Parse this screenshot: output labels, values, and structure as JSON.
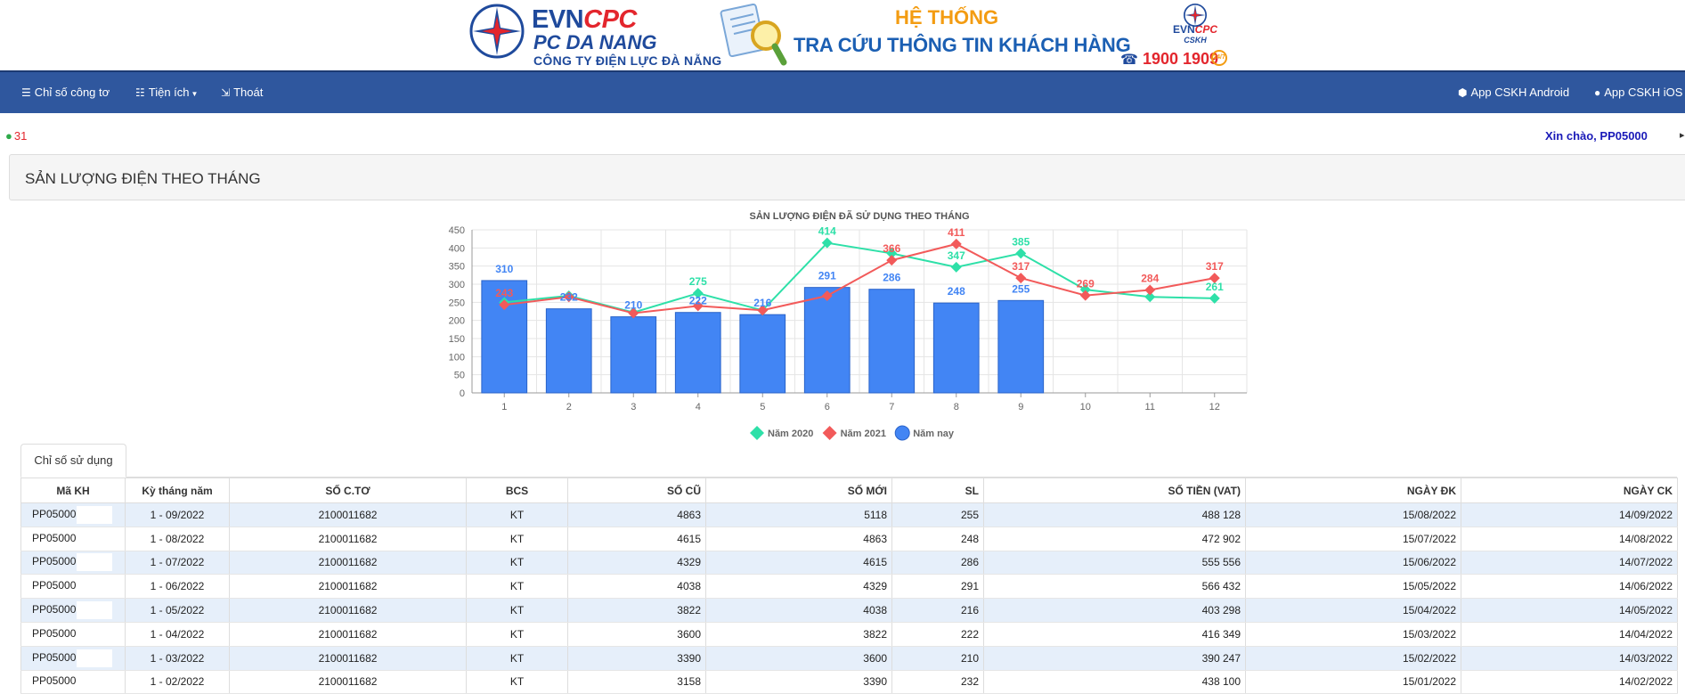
{
  "banner": {
    "brand_evn": "EVN",
    "brand_cpc": "CPC",
    "brand_pc": "PC DA NANG",
    "brand_company": "CÔNG TY ĐIỆN LỰC ĐÀ NẴNG",
    "system_line1": "HỆ THỐNG",
    "system_line2": "TRA CỨU THÔNG TIN KHÁCH HÀNG",
    "mini_logo_evn": "EVN",
    "mini_logo_cpc": "CPC",
    "mini_logo_sub": "CSKH",
    "hotline": "1900 1909",
    "badge_text": "24/7",
    "colors": {
      "blue": "#1f4a9c",
      "red": "#e3262d",
      "orange": "#f39c12"
    }
  },
  "nav": {
    "items": [
      {
        "label": "Chỉ số công tơ",
        "icon": "database-icon"
      },
      {
        "label": "Tiện ích",
        "icon": "server-icon"
      },
      {
        "label": "Thoát",
        "icon": "sign-out-icon"
      }
    ],
    "right_items": [
      {
        "label": "App CSKH Android",
        "icon": "android-icon"
      },
      {
        "label": "App CSKH iOS",
        "icon": "apple-icon"
      }
    ],
    "background": "#2f579e"
  },
  "user": {
    "count": "31",
    "greeting": "Xin chào, PP05000"
  },
  "page_title": "SẢN LƯỢNG ĐIỆN THEO THÁNG",
  "chart_data": {
    "type": "bar",
    "title": "SẢN LƯỢNG ĐIỆN ĐÃ SỬ DỤNG THEO THÁNG",
    "categories": [
      "1",
      "2",
      "3",
      "4",
      "5",
      "6",
      "7",
      "8",
      "9",
      "10",
      "11",
      "12"
    ],
    "ylim": [
      0,
      450
    ],
    "yticks": [
      0,
      50,
      100,
      150,
      200,
      250,
      300,
      350,
      400,
      450
    ],
    "grid": true,
    "legend_position": "bottom",
    "series": [
      {
        "name": "Năm 2020",
        "type": "line",
        "color": "#2ee0a8",
        "values": [
          250,
          268,
          222,
          275,
          228,
          414,
          385,
          347,
          385,
          285,
          265,
          261
        ],
        "labels": [
          "",
          "",
          "",
          "275",
          "",
          "414",
          "",
          "347",
          "385",
          "",
          "",
          "261"
        ]
      },
      {
        "name": "Năm 2021",
        "type": "line",
        "color": "#f25a5a",
        "values": [
          243,
          265,
          220,
          240,
          228,
          268,
          366,
          411,
          317,
          269,
          284,
          317
        ],
        "labels": [
          "243",
          "",
          "",
          "",
          "",
          "",
          "366",
          "411",
          "317",
          "269",
          "284",
          "317"
        ]
      },
      {
        "name": "Năm nay",
        "type": "bar",
        "color": "#4285f4",
        "values": [
          310,
          232,
          210,
          222,
          216,
          291,
          286,
          248,
          255,
          null,
          null,
          null
        ],
        "labels": [
          "310",
          "232",
          "210",
          "222",
          "216",
          "291",
          "286",
          "248",
          "255",
          "",
          "",
          ""
        ]
      }
    ]
  },
  "tab": {
    "label": "Chỉ số sử dụng"
  },
  "table": {
    "headers": [
      "Mã KH",
      "Kỳ tháng năm",
      "SỐ C.TƠ",
      "BCS",
      "SỐ CŨ",
      "SỐ MỚI",
      "SL",
      "SỐ TIỀN (VAT)",
      "NGÀY ĐK",
      "NGÀY CK"
    ],
    "rows": [
      [
        "PP05000",
        "1 - 09/2022",
        "2100011682",
        "KT",
        "4863",
        "5118",
        "255",
        "488 128",
        "15/08/2022",
        "14/09/2022"
      ],
      [
        "PP05000",
        "1 - 08/2022",
        "2100011682",
        "KT",
        "4615",
        "4863",
        "248",
        "472 902",
        "15/07/2022",
        "14/08/2022"
      ],
      [
        "PP05000",
        "1 - 07/2022",
        "2100011682",
        "KT",
        "4329",
        "4615",
        "286",
        "555 556",
        "15/06/2022",
        "14/07/2022"
      ],
      [
        "PP05000",
        "1 - 06/2022",
        "2100011682",
        "KT",
        "4038",
        "4329",
        "291",
        "566 432",
        "15/05/2022",
        "14/06/2022"
      ],
      [
        "PP05000",
        "1 - 05/2022",
        "2100011682",
        "KT",
        "3822",
        "4038",
        "216",
        "403 298",
        "15/04/2022",
        "14/05/2022"
      ],
      [
        "PP05000",
        "1 - 04/2022",
        "2100011682",
        "KT",
        "3600",
        "3822",
        "222",
        "416 349",
        "15/03/2022",
        "14/04/2022"
      ],
      [
        "PP05000",
        "1 - 03/2022",
        "2100011682",
        "KT",
        "3390",
        "3600",
        "210",
        "390 247",
        "15/02/2022",
        "14/03/2022"
      ],
      [
        "PP05000",
        "1 - 02/2022",
        "2100011682",
        "KT",
        "3158",
        "3390",
        "232",
        "438 100",
        "15/01/2022",
        "14/02/2022"
      ]
    ]
  }
}
